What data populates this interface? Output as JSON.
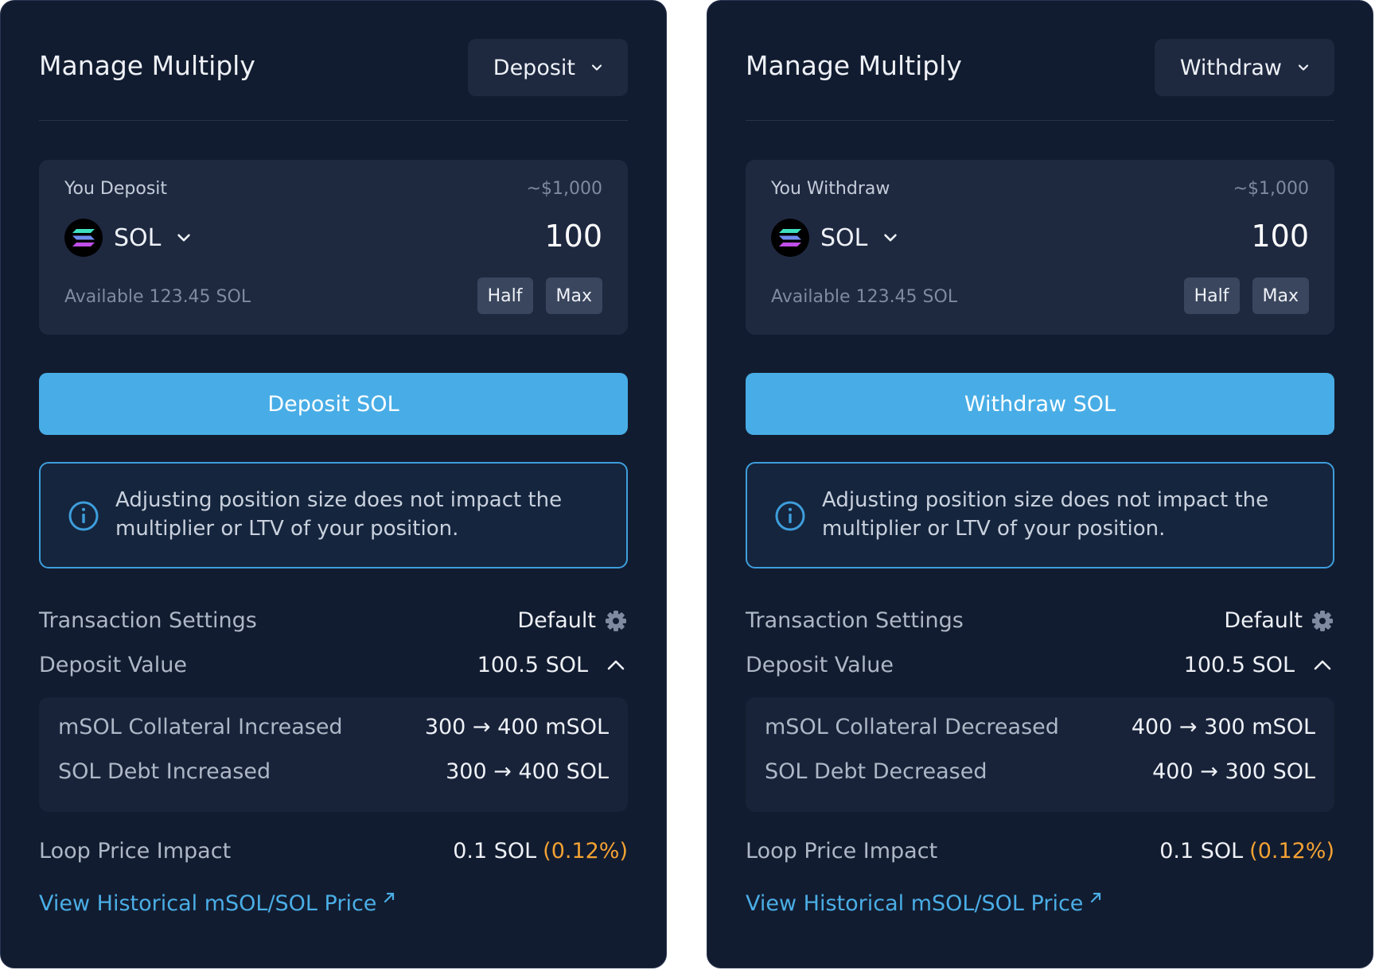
{
  "panels": [
    {
      "title": "Manage Multiply",
      "mode_label": "Deposit",
      "input_label": "You Deposit",
      "usd_value": "~$1,000",
      "token": "SOL",
      "amount": "100",
      "available": "Available 123.45 SOL",
      "half_label": "Half",
      "max_label": "Max",
      "cta_label": "Deposit SOL",
      "info_text": "Adjusting position size does not impact the multiplier or LTV of your position.",
      "tx_settings_label": "Transaction Settings",
      "tx_settings_value": "Default",
      "deposit_value_label": "Deposit Value",
      "deposit_value": "100.5 SOL",
      "detail_rows": [
        {
          "label": "mSOL Collateral Increased",
          "value": "300 → 400 mSOL"
        },
        {
          "label": "SOL Debt Increased",
          "value": "300 → 400 SOL"
        }
      ],
      "loop_label": "Loop Price Impact",
      "loop_value": "0.1 SOL",
      "loop_pct": "(0.12%)",
      "link_label": "View Historical mSOL/SOL Price"
    },
    {
      "title": "Manage Multiply",
      "mode_label": "Withdraw",
      "input_label": "You Withdraw",
      "usd_value": "~$1,000",
      "token": "SOL",
      "amount": "100",
      "available": "Available 123.45 SOL",
      "half_label": "Half",
      "max_label": "Max",
      "cta_label": "Withdraw SOL",
      "info_text": "Adjusting position size does not impact the multiplier or LTV of your position.",
      "tx_settings_label": "Transaction Settings",
      "tx_settings_value": "Default",
      "deposit_value_label": "Deposit Value",
      "deposit_value": "100.5 SOL",
      "detail_rows": [
        {
          "label": "mSOL Collateral Decreased",
          "value": "400 → 300 mSOL"
        },
        {
          "label": "SOL Debt Decreased",
          "value": "400 → 300 SOL"
        }
      ],
      "loop_label": "Loop Price Impact",
      "loop_value": "0.1 SOL",
      "loop_pct": "(0.12%)",
      "link_label": "View Historical mSOL/SOL Price"
    }
  ],
  "colors": {
    "panel_bg": "#121c30",
    "card_bg": "#1e2940",
    "accent": "#48ade6",
    "warning": "#f4a233",
    "info_border": "#3e9edc"
  },
  "icons": [
    "chevron-down-icon",
    "sol-token-icon",
    "info-icon",
    "gear-icon",
    "chevron-up-icon",
    "external-link-icon"
  ]
}
